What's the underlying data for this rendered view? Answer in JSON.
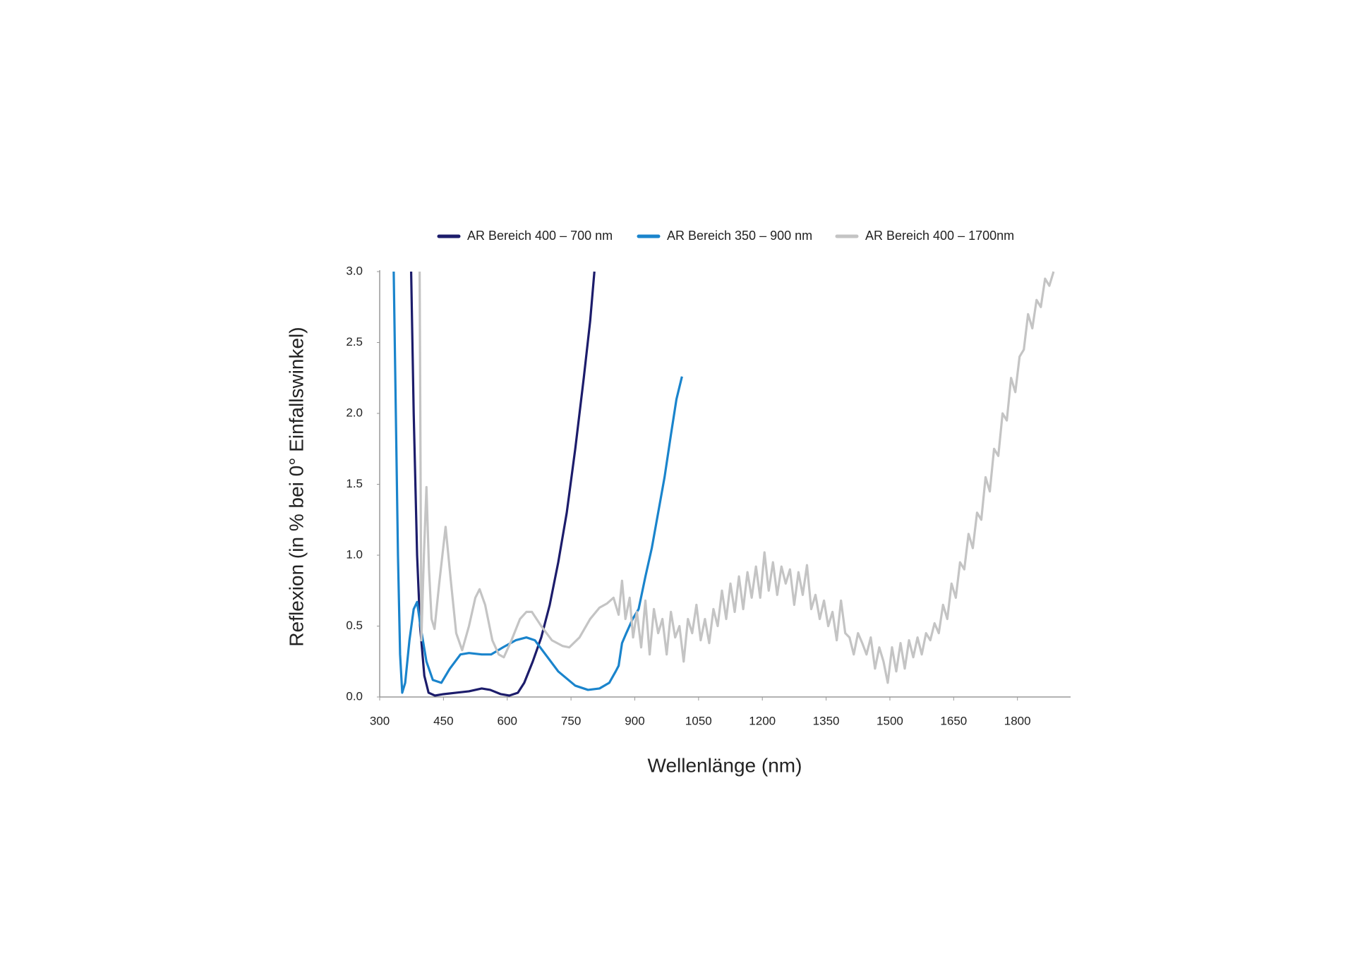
{
  "chart_data": {
    "type": "line",
    "x_label": "Wellenlänge (nm)",
    "y_label": "Reflexion (in % bei 0° Einfallswinkel)",
    "xlim": [
      300,
      1925
    ],
    "ylim": [
      0,
      3
    ],
    "xticks": [
      300,
      450,
      600,
      750,
      900,
      1050,
      1200,
      1350,
      1500,
      1650,
      1800
    ],
    "yticks": [
      {
        "value": 0,
        "label": "0.0"
      },
      0.5,
      {
        "value": 1,
        "label": "1.0"
      },
      1.5,
      {
        "value": 2,
        "label": "2.0"
      },
      2.5,
      {
        "value": 3,
        "label": "3.0"
      }
    ],
    "grid": false,
    "series": [
      {
        "name": "AR Bereich 400 – 700 nm",
        "color": "#1c1c6b",
        "x": [
          374,
          380,
          388,
          395,
          405,
          415,
          430,
          450,
          480,
          510,
          540,
          560,
          585,
          605,
          625,
          640,
          660,
          680,
          700,
          720,
          740,
          760,
          780,
          795,
          805
        ],
        "values": [
          3.0,
          2.0,
          1.0,
          0.5,
          0.15,
          0.03,
          0.01,
          0.02,
          0.03,
          0.04,
          0.06,
          0.05,
          0.02,
          0.01,
          0.03,
          0.1,
          0.25,
          0.42,
          0.65,
          0.95,
          1.3,
          1.75,
          2.25,
          2.65,
          3.0
        ]
      },
      {
        "name": "AR Bereich 350 – 900 nm",
        "color": "#1a84cc",
        "x": [
          333,
          338,
          343,
          348,
          353,
          360,
          370,
          380,
          388,
          396,
          410,
          425,
          445,
          465,
          490,
          510,
          540,
          562,
          590,
          620,
          645,
          665,
          690,
          720,
          760,
          790,
          817,
          840,
          855,
          862,
          870,
          880,
          895,
          909,
          925,
          940,
          955,
          970,
          985,
          998,
          1011
        ],
        "values": [
          3.0,
          2.0,
          1.0,
          0.3,
          0.03,
          0.1,
          0.4,
          0.62,
          0.67,
          0.5,
          0.25,
          0.12,
          0.1,
          0.2,
          0.3,
          0.31,
          0.3,
          0.3,
          0.35,
          0.4,
          0.42,
          0.4,
          0.3,
          0.18,
          0.08,
          0.05,
          0.06,
          0.1,
          0.18,
          0.22,
          0.38,
          0.45,
          0.55,
          0.62,
          0.85,
          1.05,
          1.3,
          1.55,
          1.85,
          2.1,
          2.26
        ]
      },
      {
        "name": "AR Bereich 400 – 1700nm",
        "color": "#c4c4c4",
        "x": [
          394,
          398,
          404,
          410,
          416,
          422,
          429,
          440,
          455,
          468,
          480,
          494,
          510,
          525,
          535,
          548,
          565,
          580,
          592,
          610,
          630,
          645,
          658,
          680,
          705,
          730,
          746,
          770,
          795,
          817,
          835,
          850,
          862,
          870,
          878,
          888,
          896,
          905,
          915,
          925,
          935,
          945,
          955,
          965,
          975,
          985,
          995,
          1005,
          1015,
          1025,
          1035,
          1045,
          1055,
          1065,
          1075,
          1085,
          1095,
          1105,
          1115,
          1125,
          1135,
          1145,
          1155,
          1165,
          1175,
          1185,
          1195,
          1205,
          1215,
          1225,
          1235,
          1245,
          1255,
          1265,
          1275,
          1285,
          1295,
          1305,
          1315,
          1325,
          1335,
          1345,
          1355,
          1365,
          1375,
          1385,
          1395,
          1405,
          1415,
          1425,
          1435,
          1445,
          1455,
          1465,
          1475,
          1485,
          1495,
          1505,
          1515,
          1525,
          1535,
          1545,
          1555,
          1565,
          1575,
          1585,
          1595,
          1605,
          1615,
          1625,
          1635,
          1645,
          1655,
          1665,
          1675,
          1685,
          1695,
          1705,
          1715,
          1725,
          1735,
          1745,
          1755,
          1765,
          1775,
          1785,
          1795,
          1805,
          1815,
          1825,
          1835,
          1845,
          1855,
          1865,
          1875,
          1885
        ],
        "values": [
          3.0,
          0.4,
          1.0,
          1.48,
          0.9,
          0.55,
          0.48,
          0.8,
          1.2,
          0.8,
          0.45,
          0.33,
          0.5,
          0.7,
          0.76,
          0.65,
          0.4,
          0.3,
          0.28,
          0.4,
          0.55,
          0.6,
          0.6,
          0.5,
          0.4,
          0.36,
          0.35,
          0.42,
          0.55,
          0.63,
          0.66,
          0.7,
          0.58,
          0.82,
          0.55,
          0.7,
          0.42,
          0.6,
          0.35,
          0.68,
          0.3,
          0.62,
          0.45,
          0.55,
          0.3,
          0.6,
          0.42,
          0.5,
          0.25,
          0.55,
          0.45,
          0.65,
          0.4,
          0.55,
          0.38,
          0.62,
          0.5,
          0.75,
          0.55,
          0.8,
          0.6,
          0.85,
          0.62,
          0.88,
          0.7,
          0.92,
          0.7,
          1.02,
          0.75,
          0.95,
          0.72,
          0.92,
          0.8,
          0.9,
          0.65,
          0.88,
          0.72,
          0.93,
          0.62,
          0.72,
          0.55,
          0.68,
          0.5,
          0.6,
          0.4,
          0.68,
          0.45,
          0.42,
          0.3,
          0.45,
          0.38,
          0.3,
          0.42,
          0.2,
          0.35,
          0.25,
          0.1,
          0.35,
          0.18,
          0.38,
          0.2,
          0.4,
          0.28,
          0.42,
          0.3,
          0.45,
          0.4,
          0.52,
          0.45,
          0.65,
          0.55,
          0.8,
          0.7,
          0.95,
          0.9,
          1.15,
          1.05,
          1.3,
          1.25,
          1.55,
          1.45,
          1.75,
          1.7,
          2.0,
          1.95,
          2.25,
          2.15,
          2.4,
          2.45,
          2.7,
          2.6,
          2.8,
          2.75,
          2.95,
          2.9,
          3.0
        ]
      }
    ]
  }
}
